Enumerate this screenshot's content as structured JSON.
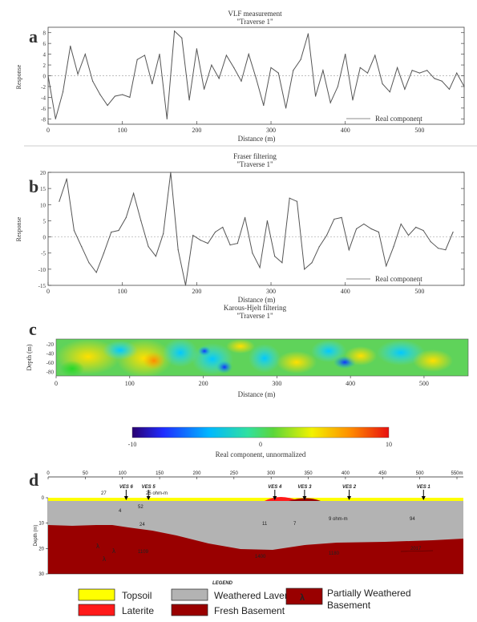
{
  "colors": {
    "line": "#555555",
    "topsoil": "#ffff00",
    "laterite": "#ff1a1a",
    "weathered": "#b3b3b3",
    "basement": "#990000"
  },
  "chart_data": [
    {
      "type": "line",
      "panel_label": "a",
      "title": "VLF measurement",
      "subtitle": "\"Traverse 1\"",
      "xlabel": "Distance (m)",
      "ylabel": "Response",
      "xlim": [
        0,
        560
      ],
      "ylim": [
        -9,
        9
      ],
      "xticks": [
        0,
        100,
        200,
        300,
        400,
        500
      ],
      "yticks": [
        -8,
        -6,
        -4,
        -2,
        0,
        2,
        4,
        6,
        8
      ],
      "legend": "Real component",
      "legend_position": "bottom-right",
      "x": [
        0,
        10,
        20,
        30,
        40,
        50,
        60,
        70,
        80,
        90,
        100,
        110,
        120,
        130,
        140,
        150,
        160,
        170,
        180,
        190,
        200,
        210,
        220,
        230,
        240,
        250,
        260,
        270,
        280,
        290,
        300,
        310,
        320,
        330,
        340,
        350,
        360,
        370,
        380,
        390,
        400,
        410,
        420,
        430,
        440,
        450,
        460,
        470,
        480,
        490,
        500,
        510,
        520,
        530,
        540,
        550,
        560
      ],
      "y": [
        0,
        -8,
        -3,
        5.5,
        0.3,
        4,
        -1,
        -3.5,
        -5.5,
        -3.8,
        -3.5,
        -4,
        3,
        3.8,
        -1.5,
        4,
        -8,
        8.3,
        7,
        -4.5,
        5,
        -2.5,
        2,
        -0.5,
        3.8,
        1.5,
        -1,
        4,
        -0.5,
        -5.5,
        1.5,
        0.5,
        -6,
        1,
        3,
        7.8,
        -3.8,
        1,
        -5,
        -2,
        4,
        -4.5,
        1.5,
        0.5,
        3.8,
        -1.5,
        -3,
        1.5,
        -2.5,
        1,
        0.5,
        1,
        -0.5,
        -1,
        -2.5,
        0.5,
        -2
      ]
    },
    {
      "type": "line",
      "panel_label": "b",
      "title": "Fraser filtering",
      "subtitle": "\"Traverse 1\"",
      "xlabel": "Distance (m)",
      "ylabel": "Response",
      "xlim": [
        0,
        560
      ],
      "ylim": [
        -15,
        20
      ],
      "xticks": [
        0,
        100,
        200,
        300,
        400,
        500
      ],
      "yticks": [
        -15,
        -10,
        -5,
        0,
        5,
        10,
        15,
        20
      ],
      "legend": "Real component",
      "legend_position": "bottom-right",
      "x": [
        15,
        25,
        35,
        45,
        55,
        65,
        75,
        85,
        95,
        105,
        115,
        125,
        135,
        145,
        155,
        165,
        175,
        185,
        195,
        205,
        215,
        225,
        235,
        245,
        255,
        265,
        275,
        285,
        295,
        305,
        315,
        325,
        335,
        345,
        355,
        365,
        375,
        385,
        395,
        405,
        415,
        425,
        435,
        445,
        455,
        465,
        475,
        485,
        495,
        505,
        515,
        525,
        535,
        545
      ],
      "y": [
        11,
        18,
        2,
        -3,
        -8,
        -11,
        -5,
        1.5,
        2,
        6,
        13.5,
        5,
        -3,
        -6,
        1,
        20,
        -4,
        -15,
        0.5,
        -1,
        -2,
        1.5,
        3,
        -2.5,
        -2,
        6,
        -5,
        -9.5,
        5,
        -6,
        -8,
        12,
        11,
        -10,
        -8,
        -3,
        0.5,
        5.5,
        6,
        -4,
        2.5,
        4,
        2.5,
        1.5,
        -9,
        -3,
        4,
        0.5,
        3,
        2,
        -1.5,
        -3.5,
        -4,
        1.5
      ]
    },
    {
      "type": "heatmap",
      "panel_label": "c",
      "title": "Karous-Hjelt filtering",
      "subtitle": "\"Traverse 1\"",
      "xlabel": "Distance (m)",
      "ylabel": "Depth (m)",
      "xlim": [
        0,
        560
      ],
      "ylim": [
        -90,
        -10
      ],
      "xticks": [
        0,
        100,
        200,
        300,
        400,
        500
      ],
      "yticks": [
        -20,
        -40,
        -60,
        -80
      ],
      "colorbar": {
        "label": "Real component, unnormalized",
        "min": -10,
        "max": 10,
        "ticks": [
          -10,
          0,
          10
        ]
      }
    },
    {
      "type": "geoelectric_section",
      "panel_label": "d",
      "x_axis_label": "m",
      "xticks": [
        0,
        50,
        100,
        150,
        200,
        250,
        300,
        350,
        400,
        450,
        500,
        550
      ],
      "ylabel": "Depth (m)",
      "yticks": [
        0,
        10,
        20,
        30
      ],
      "ves": [
        {
          "label": "VES 6",
          "x": 105
        },
        {
          "label": "VES 5",
          "x": 135
        },
        {
          "label": "VES 4",
          "x": 305
        },
        {
          "label": "VES 3",
          "x": 345
        },
        {
          "label": "VES 2",
          "x": 405
        },
        {
          "label": "VES 1",
          "x": 505
        }
      ],
      "resistivity_labels": [
        "27",
        "25 ohm-m",
        "4",
        "52",
        "24",
        "11",
        "7",
        "9 ohm-m",
        "94",
        "1109",
        "1400",
        "1180",
        "2017"
      ],
      "legend_title": "LEGEND",
      "legend": [
        {
          "label": "Topsoil",
          "color": "#ffff00"
        },
        {
          "label": "Weathered Laver",
          "color": "#b3b3b3"
        },
        {
          "label": "Partially Weathered Basement",
          "color": "#990000",
          "symbol": "λ"
        },
        {
          "label": "Laterite",
          "color": "#ff1a1a"
        },
        {
          "label": "Fresh Basement",
          "color": "#990000"
        }
      ]
    }
  ]
}
